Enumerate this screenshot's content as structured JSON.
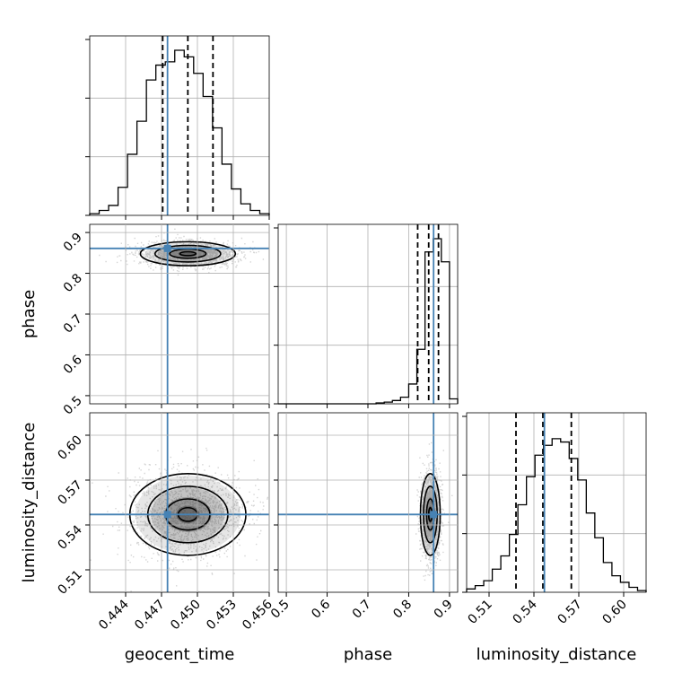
{
  "chart_data": {
    "type": "corner",
    "parameters": [
      {
        "name": "geocent_time",
        "label": "geocent_time",
        "range": [
          0.441,
          0.456
        ],
        "ticks": [
          0.444,
          0.447,
          0.45,
          0.453,
          0.456
        ],
        "tick_labels": [
          "0.444",
          "0.447",
          "0.450",
          "0.453",
          "0.456"
        ],
        "truth": 0.4475,
        "quantiles": [
          0.4471,
          0.4492,
          0.4513
        ],
        "hist": [
          0.01,
          0.03,
          0.06,
          0.17,
          0.37,
          0.57,
          0.82,
          0.91,
          0.93,
          1.0,
          0.96,
          0.86,
          0.72,
          0.53,
          0.31,
          0.16,
          0.07,
          0.03,
          0.01
        ]
      },
      {
        "name": "phase",
        "label": "phase",
        "range": [
          0.48,
          0.92
        ],
        "ticks": [
          0.5,
          0.6,
          0.7,
          0.8,
          0.9
        ],
        "tick_labels": [
          "0.5",
          "0.6",
          "0.7",
          "0.8",
          "0.9"
        ],
        "truth": 0.861,
        "quantiles": [
          0.822,
          0.849,
          0.873
        ],
        "hist": [
          0,
          0,
          0,
          0,
          0,
          0,
          0,
          0,
          0,
          0,
          0,
          0,
          0.005,
          0.01,
          0.02,
          0.04,
          0.12,
          0.33,
          0.92,
          1.0,
          0.86,
          0.03
        ]
      },
      {
        "name": "luminosity_distance",
        "label": "luminosity_distance",
        "range": [
          0.495,
          0.615
        ],
        "ticks": [
          0.51,
          0.54,
          0.57,
          0.6
        ],
        "tick_labels": [
          "0.51",
          "0.54",
          "0.57",
          "0.60"
        ],
        "truth": 0.547,
        "quantiles": [
          0.528,
          0.546,
          0.565
        ],
        "hist": [
          0.02,
          0.04,
          0.07,
          0.14,
          0.22,
          0.35,
          0.53,
          0.7,
          0.83,
          0.89,
          0.93,
          0.91,
          0.81,
          0.68,
          0.48,
          0.33,
          0.18,
          0.1,
          0.06,
          0.03,
          0.01
        ]
      }
    ],
    "truth_color": "#4682b4",
    "hist_color": "#000000",
    "quantile_style": "dashed",
    "grid": true,
    "pairs": [
      {
        "x": "geocent_time",
        "y": "phase",
        "center": [
          0.4492,
          0.848
        ],
        "spread": [
          0.0018,
          0.014
        ]
      },
      {
        "x": "geocent_time",
        "y": "luminosity_distance",
        "center": [
          0.4492,
          0.547
        ],
        "spread": [
          0.0022,
          0.013
        ]
      },
      {
        "x": "phase",
        "y": "luminosity_distance",
        "center": [
          0.853,
          0.547
        ],
        "spread": [
          0.011,
          0.013
        ]
      }
    ]
  }
}
